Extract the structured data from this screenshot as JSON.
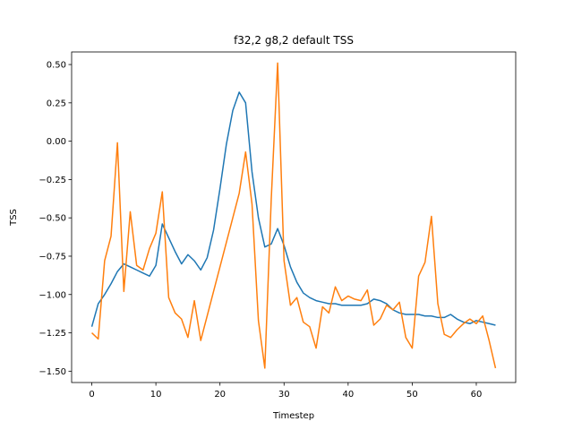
{
  "chart_data": {
    "type": "line",
    "title": "f32,2 g8,2 default TSS",
    "xlabel": "Timestep",
    "ylabel": "TSS",
    "xlim": [
      -3.15,
      66.15
    ],
    "ylim": [
      -1.574,
      0.582
    ],
    "xticks": [
      0,
      10,
      20,
      30,
      40,
      50,
      60
    ],
    "xtick_labels": [
      "0",
      "10",
      "20",
      "30",
      "40",
      "50",
      "60"
    ],
    "yticks": [
      -1.5,
      -1.25,
      -1.0,
      -0.75,
      -0.5,
      -0.25,
      0.0,
      0.25,
      0.5
    ],
    "ytick_labels": [
      "−1.50",
      "−1.25",
      "−1.00",
      "−0.75",
      "−0.50",
      "−0.25",
      "0.00",
      "0.25",
      "0.50"
    ],
    "grid": false,
    "series": [
      {
        "color": "#1f77b4",
        "x": [
          0,
          1,
          2,
          3,
          4,
          5,
          6,
          7,
          8,
          9,
          10,
          11,
          12,
          13,
          14,
          15,
          16,
          17,
          18,
          19,
          20,
          21,
          22,
          23,
          24,
          25,
          26,
          27,
          28,
          29,
          30,
          31,
          32,
          33,
          34,
          35,
          36,
          37,
          38,
          39,
          40,
          41,
          42,
          43,
          44,
          45,
          46,
          47,
          48,
          49,
          50,
          51,
          52,
          53,
          54,
          55,
          56,
          57,
          58,
          59,
          60,
          61,
          62,
          63
        ],
        "values": [
          -1.21,
          -1.06,
          -1.0,
          -0.93,
          -0.85,
          -0.8,
          -0.82,
          -0.84,
          -0.86,
          -0.88,
          -0.81,
          -0.54,
          -0.63,
          -0.72,
          -0.8,
          -0.74,
          -0.78,
          -0.84,
          -0.76,
          -0.58,
          -0.31,
          -0.02,
          0.2,
          0.32,
          0.25,
          -0.2,
          -0.5,
          -0.69,
          -0.67,
          -0.57,
          -0.68,
          -0.82,
          -0.92,
          -0.99,
          -1.02,
          -1.04,
          -1.05,
          -1.06,
          -1.06,
          -1.07,
          -1.07,
          -1.07,
          -1.07,
          -1.06,
          -1.03,
          -1.04,
          -1.06,
          -1.1,
          -1.12,
          -1.13,
          -1.13,
          -1.13,
          -1.14,
          -1.14,
          -1.15,
          -1.15,
          -1.13,
          -1.16,
          -1.18,
          -1.19,
          -1.17,
          -1.18,
          -1.19,
          -1.2
        ]
      },
      {
        "color": "#ff7f0e",
        "x": [
          0,
          1,
          2,
          3,
          4,
          5,
          6,
          7,
          8,
          9,
          10,
          11,
          12,
          13,
          14,
          15,
          16,
          17,
          18,
          19,
          20,
          21,
          22,
          23,
          24,
          25,
          26,
          27,
          28,
          29,
          30,
          31,
          32,
          33,
          34,
          35,
          36,
          37,
          38,
          39,
          40,
          41,
          42,
          43,
          44,
          45,
          46,
          47,
          48,
          49,
          50,
          51,
          52,
          53,
          54,
          55,
          56,
          57,
          58,
          59,
          60,
          61,
          62,
          63
        ],
        "values": [
          -1.25,
          -1.29,
          -0.78,
          -0.62,
          -0.01,
          -0.98,
          -0.46,
          -0.81,
          -0.84,
          -0.7,
          -0.6,
          -0.33,
          -1.02,
          -1.12,
          -1.16,
          -1.28,
          -1.04,
          -1.3,
          -1.14,
          -0.98,
          -0.82,
          -0.66,
          -0.5,
          -0.34,
          -0.07,
          -0.41,
          -1.17,
          -1.48,
          -0.38,
          0.51,
          -0.78,
          -1.07,
          -1.02,
          -1.18,
          -1.21,
          -1.35,
          -1.08,
          -1.12,
          -0.95,
          -1.04,
          -1.01,
          -1.03,
          -1.04,
          -0.97,
          -1.2,
          -1.16,
          -1.07,
          -1.1,
          -1.05,
          -1.28,
          -1.35,
          -0.88,
          -0.79,
          -0.49,
          -1.06,
          -1.26,
          -1.28,
          -1.23,
          -1.19,
          -1.16,
          -1.19,
          -1.14,
          -1.3,
          -1.48
        ]
      }
    ]
  }
}
